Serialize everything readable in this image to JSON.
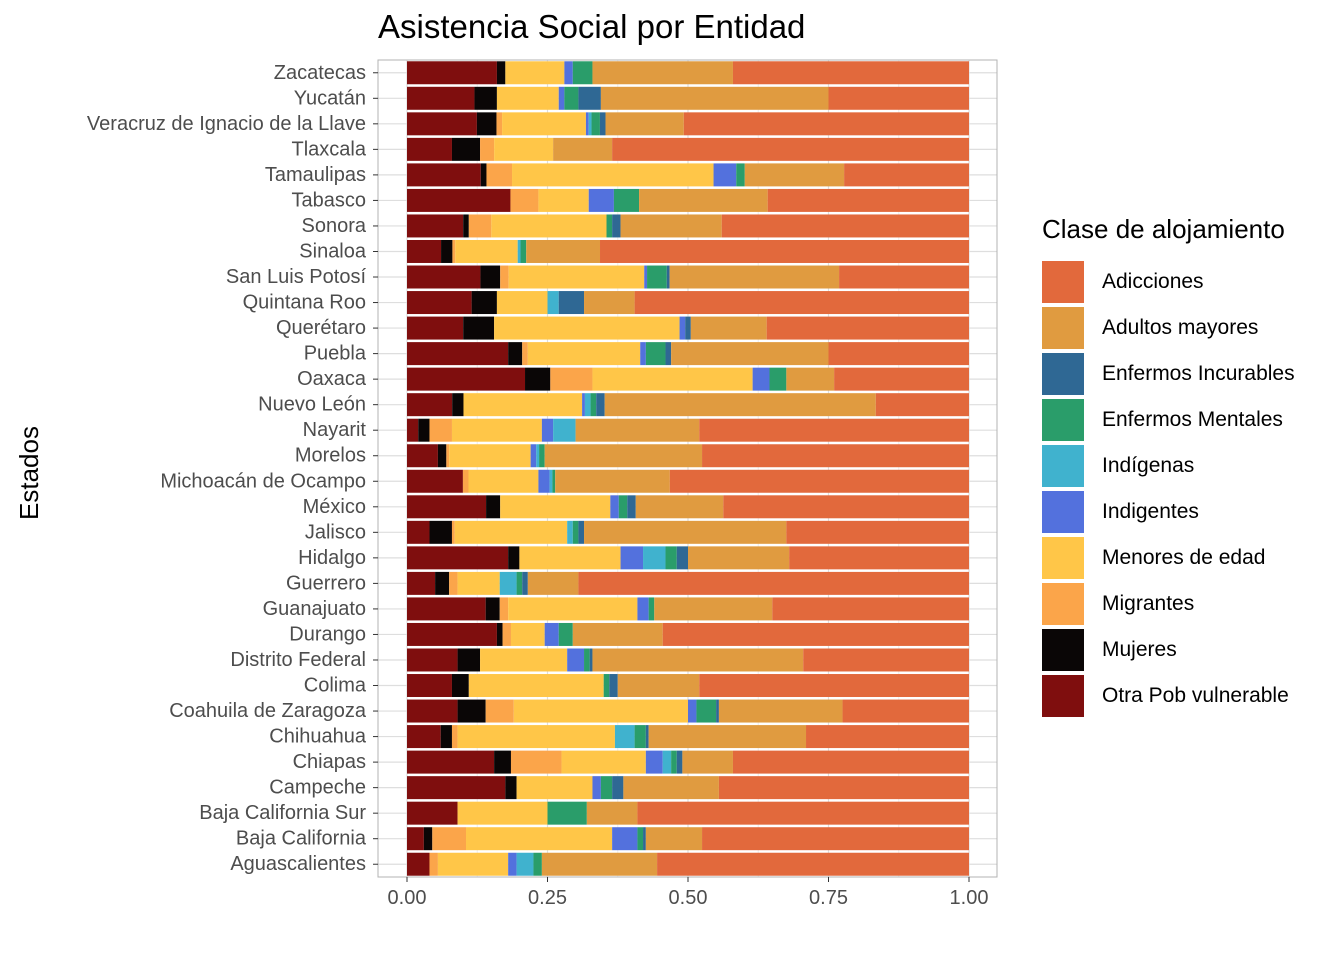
{
  "chart_data": {
    "type": "bar",
    "orientation": "horizontal",
    "stacked": "fill",
    "title": "Asistencia Social por Entidad",
    "ylabel": "Estados",
    "xlim": [
      0,
      1
    ],
    "xticks": [
      0,
      0.25,
      0.5,
      0.75,
      1
    ],
    "xtick_labels": [
      "0.00",
      "0.25",
      "0.50",
      "0.75",
      "1.00"
    ],
    "grid": true,
    "legend_position": "right",
    "legend_title": "Clase de alojamiento",
    "categories": [
      "Zacatecas",
      "Yucatán",
      "Veracruz de Ignacio de la Llave",
      "Tlaxcala",
      "Tamaulipas",
      "Tabasco",
      "Sonora",
      "Sinaloa",
      "San Luis Potosí",
      "Quintana Roo",
      "Querétaro",
      "Puebla",
      "Oaxaca",
      "Nuevo León",
      "Nayarit",
      "Morelos",
      "Michoacán de Ocampo",
      "México",
      "Jalisco",
      "Hidalgo",
      "Guerrero",
      "Guanajuato",
      "Durango",
      "Distrito Federal",
      "Colima",
      "Coahuila de Zaragoza",
      "Chihuahua",
      "Chiapas",
      "Campeche",
      "Baja California Sur",
      "Baja California",
      "Aguascalientes"
    ],
    "series": [
      {
        "name": "Otra Pob vulnerable",
        "color": "#7F0E0E",
        "values": [
          0.16,
          0.12,
          0.125,
          0.08,
          0.13,
          0.185,
          0.1,
          0.06,
          0.13,
          0.115,
          0.1,
          0.18,
          0.21,
          0.08,
          0.02,
          0.055,
          0.1,
          0.14,
          0.04,
          0.18,
          0.05,
          0.14,
          0.16,
          0.09,
          0.08,
          0.09,
          0.06,
          0.155,
          0.175,
          0.09,
          0.03,
          0.04
        ]
      },
      {
        "name": "Mujeres",
        "color": "#0A0606",
        "values": [
          0.015,
          0.04,
          0.035,
          0.05,
          0.01,
          0,
          0.01,
          0.02,
          0.035,
          0.045,
          0.055,
          0.025,
          0.045,
          0.02,
          0.02,
          0.015,
          0,
          0.025,
          0.04,
          0.02,
          0.025,
          0.025,
          0.01,
          0.04,
          0.03,
          0.05,
          0.02,
          0.03,
          0.02,
          0,
          0.015,
          0
        ]
      },
      {
        "name": "Migrantes",
        "color": "#FBA54A",
        "values": [
          0,
          0,
          0.01,
          0.025,
          0.045,
          0.05,
          0.04,
          0.005,
          0.015,
          0,
          0,
          0.01,
          0.075,
          0,
          0.04,
          0.005,
          0.01,
          0,
          0.005,
          0,
          0.015,
          0.015,
          0.015,
          0,
          0,
          0.05,
          0.01,
          0.09,
          0,
          0,
          0.06,
          0.015
        ]
      },
      {
        "name": "Menores de edad",
        "color": "#FFC648",
        "values": [
          0.105,
          0.11,
          0.15,
          0.105,
          0.355,
          0.09,
          0.205,
          0.11,
          0.24,
          0.09,
          0.33,
          0.2,
          0.285,
          0.21,
          0.16,
          0.145,
          0.125,
          0.195,
          0.2,
          0.18,
          0.075,
          0.23,
          0.06,
          0.155,
          0.24,
          0.31,
          0.28,
          0.15,
          0.135,
          0.16,
          0.26,
          0.125
        ]
      },
      {
        "name": "Indigentes",
        "color": "#5371DD",
        "values": [
          0.015,
          0.01,
          0.005,
          0,
          0.04,
          0.045,
          0,
          0,
          0.005,
          0,
          0.01,
          0.01,
          0.03,
          0.005,
          0.02,
          0.01,
          0.02,
          0.015,
          0,
          0.04,
          0,
          0.02,
          0.025,
          0.03,
          0,
          0.015,
          0,
          0.03,
          0.015,
          0,
          0.045,
          0.015
        ]
      },
      {
        "name": "Indígenas",
        "color": "#40B2CE",
        "values": [
          0,
          0,
          0.005,
          0,
          0,
          0,
          0,
          0.005,
          0,
          0.02,
          0,
          0,
          0,
          0.01,
          0.04,
          0.005,
          0.005,
          0,
          0.01,
          0.04,
          0.03,
          0,
          0,
          0,
          0,
          0,
          0.035,
          0.015,
          0,
          0,
          0,
          0.03
        ]
      },
      {
        "name": "Enfermos Mentales",
        "color": "#2A9D6A",
        "values": [
          0.035,
          0.025,
          0.015,
          0,
          0.015,
          0.045,
          0.01,
          0.01,
          0.035,
          0,
          0,
          0.035,
          0.03,
          0.01,
          0,
          0.01,
          0.005,
          0.015,
          0.01,
          0.02,
          0.01,
          0.01,
          0.025,
          0.01,
          0.01,
          0.035,
          0.02,
          0.01,
          0.02,
          0.07,
          0.01,
          0.015
        ]
      },
      {
        "name": "Enfermos Incurables",
        "color": "#2F6894",
        "values": [
          0,
          0.04,
          0.01,
          0,
          0,
          0,
          0.015,
          0,
          0.005,
          0.045,
          0.01,
          0.01,
          0,
          0.015,
          0,
          0,
          0,
          0.015,
          0.01,
          0.02,
          0.01,
          0,
          0,
          0.005,
          0.015,
          0.005,
          0.005,
          0.01,
          0.02,
          0,
          0.005,
          0
        ]
      },
      {
        "name": "Adultos mayores",
        "color": "#E09B40",
        "values": [
          0.25,
          0.405,
          0.14,
          0.105,
          0.175,
          0.23,
          0.18,
          0.13,
          0.3,
          0.09,
          0.135,
          0.28,
          0.085,
          0.48,
          0.22,
          0.28,
          0.205,
          0.155,
          0.36,
          0.18,
          0.09,
          0.21,
          0.16,
          0.375,
          0.145,
          0.22,
          0.28,
          0.09,
          0.17,
          0.09,
          0.1,
          0.205
        ]
      },
      {
        "name": "Adicciones",
        "color": "#E2693C",
        "values": [
          0.42,
          0.25,
          0.51,
          0.635,
          0.22,
          0.36,
          0.44,
          0.65,
          0.23,
          0.595,
          0.36,
          0.25,
          0.24,
          0.165,
          0.48,
          0.475,
          0.535,
          0.435,
          0.325,
          0.32,
          0.695,
          0.35,
          0.545,
          0.295,
          0.48,
          0.225,
          0.29,
          0.42,
          0.445,
          0.59,
          0.475,
          0.555
        ]
      }
    ]
  },
  "legend_order": [
    "Adicciones",
    "Adultos mayores",
    "Enfermos Incurables",
    "Enfermos Mentales",
    "Indígenas",
    "Indigentes",
    "Menores de edad",
    "Migrantes",
    "Mujeres",
    "Otra Pob vulnerable"
  ]
}
